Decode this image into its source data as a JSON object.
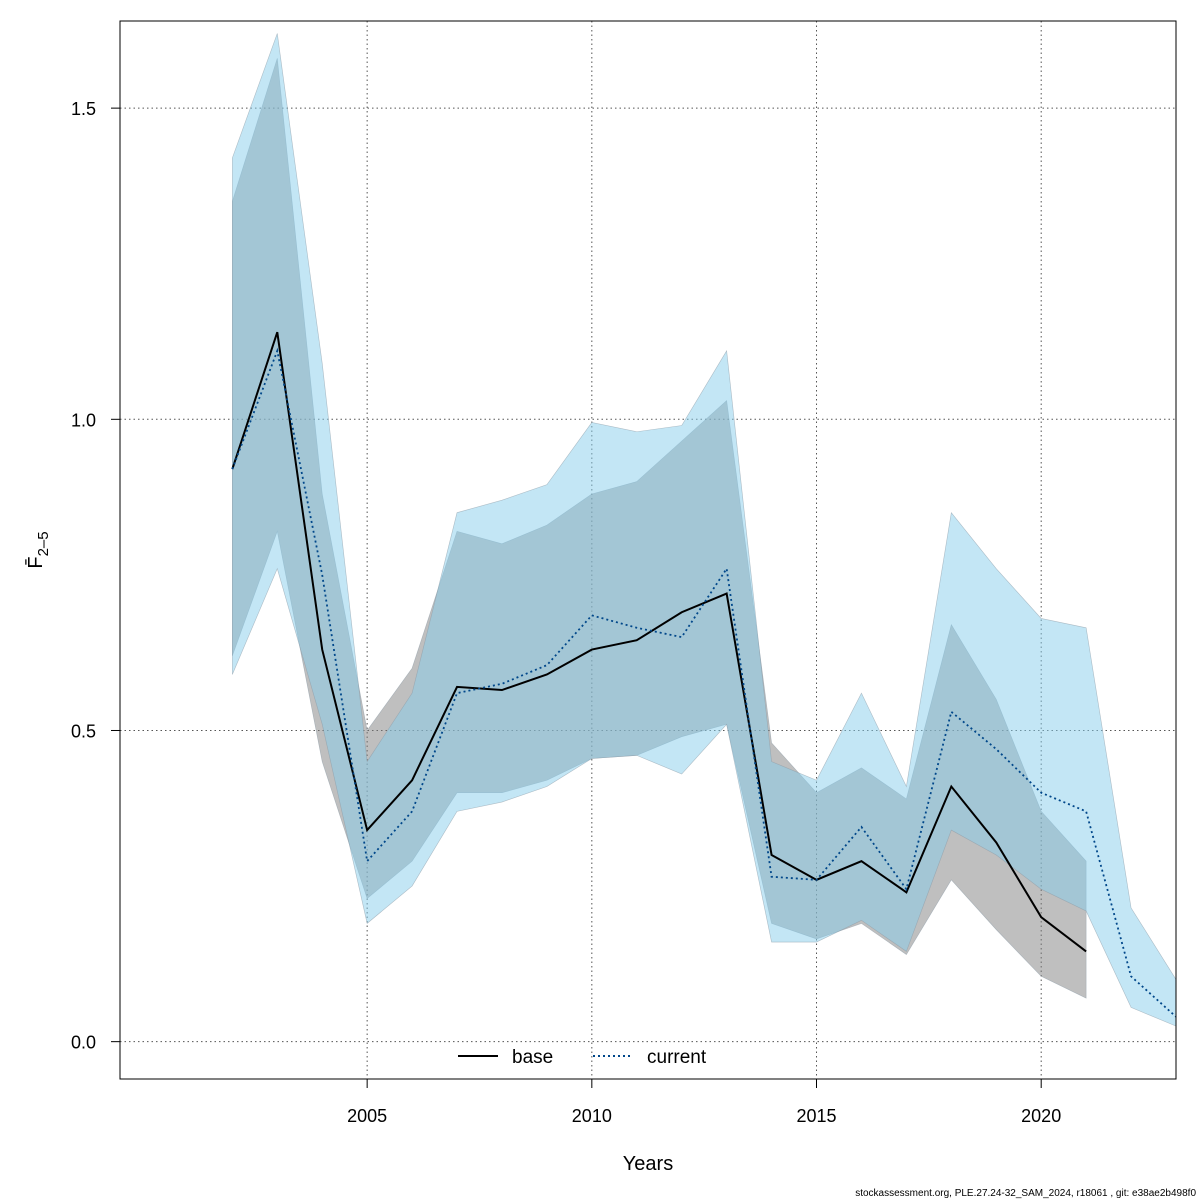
{
  "chart_data": {
    "type": "line",
    "xlabel": "Years",
    "ylabel": "F̄",
    "ylabel_subscript": "2–5",
    "xlim": [
      1999.5,
      2023
    ],
    "ylim": [
      -0.06,
      1.64
    ],
    "xticks": [
      2005,
      2010,
      2015,
      2020
    ],
    "yticks": [
      0.0,
      0.5,
      1.0,
      1.5
    ],
    "ytick_labels": [
      "0.0",
      "0.5",
      "1.0",
      "1.5"
    ],
    "grid": true,
    "legend_position": "bottom",
    "series": [
      {
        "name": "base",
        "color": "#000000",
        "band_color": "#808080",
        "linestyle": "solid",
        "x": [
          2002,
          2003,
          2004,
          2005,
          2006,
          2007,
          2008,
          2009,
          2010,
          2011,
          2012,
          2013,
          2014,
          2015,
          2016,
          2017,
          2018,
          2019,
          2020,
          2021
        ],
        "values": [
          0.92,
          1.14,
          0.63,
          0.34,
          0.42,
          0.57,
          0.565,
          0.59,
          0.63,
          0.645,
          0.69,
          0.72,
          0.3,
          0.26,
          0.29,
          0.24,
          0.41,
          0.32,
          0.2,
          0.145
        ],
        "lower": [
          0.62,
          0.82,
          0.45,
          0.23,
          0.29,
          0.4,
          0.4,
          0.42,
          0.455,
          0.46,
          0.49,
          0.51,
          0.19,
          0.165,
          0.19,
          0.14,
          0.26,
          0.18,
          0.105,
          0.07
        ],
        "upper": [
          1.35,
          1.58,
          0.88,
          0.5,
          0.6,
          0.82,
          0.8,
          0.83,
          0.88,
          0.9,
          0.965,
          1.03,
          0.48,
          0.4,
          0.44,
          0.39,
          0.67,
          0.55,
          0.37,
          0.29
        ]
      },
      {
        "name": "current",
        "color": "#00478a",
        "band_color": "#87ceeb",
        "linestyle": "dotted",
        "x": [
          2002,
          2003,
          2004,
          2005,
          2006,
          2007,
          2008,
          2009,
          2010,
          2011,
          2012,
          2013,
          2014,
          2015,
          2016,
          2017,
          2018,
          2019,
          2020,
          2021,
          2022,
          2023
        ],
        "values": [
          0.92,
          1.11,
          0.75,
          0.29,
          0.37,
          0.56,
          0.575,
          0.605,
          0.685,
          0.665,
          0.65,
          0.76,
          0.265,
          0.26,
          0.345,
          0.245,
          0.53,
          0.47,
          0.4,
          0.37,
          0.105,
          0.04
        ],
        "lower": [
          0.59,
          0.76,
          0.51,
          0.19,
          0.25,
          0.37,
          0.385,
          0.41,
          0.455,
          0.46,
          0.43,
          0.51,
          0.16,
          0.16,
          0.195,
          0.145,
          0.34,
          0.3,
          0.245,
          0.21,
          0.055,
          0.025
        ],
        "upper": [
          1.42,
          1.62,
          1.09,
          0.45,
          0.56,
          0.85,
          0.87,
          0.895,
          0.995,
          0.98,
          0.99,
          1.11,
          0.45,
          0.42,
          0.56,
          0.41,
          0.85,
          0.76,
          0.68,
          0.665,
          0.215,
          0.1
        ]
      }
    ],
    "footer": "stockassessment.org, PLE.27.24-32_SAM_2024, r18061 , git: e38ae2b498f0"
  }
}
